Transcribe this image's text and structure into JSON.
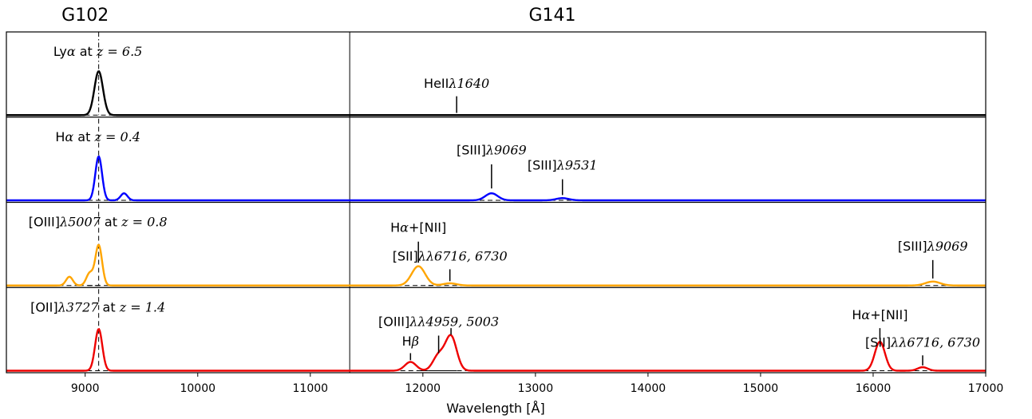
{
  "chart_data": {
    "type": "line",
    "xlabel": "Wavelength [Å]",
    "xlim": [
      8300,
      17000
    ],
    "xticks": [
      9000,
      10000,
      11000,
      12000,
      13000,
      14000,
      15000,
      16000,
      17000
    ],
    "grid": false,
    "legend": "none",
    "grism_divider_x": 11350,
    "grisms": [
      {
        "label": "G102",
        "x_center": 9000
      },
      {
        "label": "G141",
        "x_center": 13150
      }
    ],
    "marker_x": 9120,
    "panels": [
      {
        "color": "#000000",
        "title": [
          "Ly",
          "α",
          " at ",
          "z = 6.5"
        ],
        "lines": [
          {
            "x": 9120,
            "amp": 1.0,
            "sigma": 38
          },
          {
            "x": 12300,
            "amp": 0.0,
            "sigma": 50
          }
        ],
        "annotations": [
          {
            "x": 12300,
            "label": [
              "HeII",
              "λ1640"
            ],
            "tick_from": 0.05,
            "tick_to": 0.43,
            "text_at": 0.62
          }
        ]
      },
      {
        "color": "#0000ff",
        "title": [
          "H",
          "α",
          " at ",
          "z = 0.4"
        ],
        "lines": [
          {
            "x": 9120,
            "amp": 1.0,
            "sigma": 30
          },
          {
            "x": 9345,
            "amp": 0.16,
            "sigma": 30
          },
          {
            "x": 12610,
            "amp": 0.16,
            "sigma": 55
          },
          {
            "x": 13240,
            "amp": 0.05,
            "sigma": 55
          }
        ],
        "annotations": [
          {
            "x": 12610,
            "label": [
              "[SIII]",
              "λ9069"
            ],
            "tick_from": 0.27,
            "tick_to": 0.82,
            "text_at": 1.05
          },
          {
            "x": 13240,
            "label": [
              "[SIII]",
              "λ9531"
            ],
            "tick_from": 0.12,
            "tick_to": 0.48,
            "text_at": 0.7
          }
        ]
      },
      {
        "color": "#ffa500",
        "title": [
          "[OIII]",
          "λ5007",
          " at ",
          "z = 0.8"
        ],
        "lines": [
          {
            "x": 8860,
            "amp": 0.2,
            "sigma": 30
          },
          {
            "x": 9040,
            "amp": 0.28,
            "sigma": 30
          },
          {
            "x": 9120,
            "amp": 0.92,
            "sigma": 30
          },
          {
            "x": 11960,
            "amp": 0.44,
            "sigma": 60
          },
          {
            "x": 12240,
            "amp": 0.05,
            "sigma": 60
          },
          {
            "x": 16530,
            "amp": 0.09,
            "sigma": 65
          }
        ],
        "annotations": [
          {
            "x": 11960,
            "label": [
              "H",
              "α",
              "+[NII]"
            ],
            "tick_from": 0.52,
            "tick_to": 1.0,
            "text_at": 1.22
          },
          {
            "x": 12240,
            "label": [
              "[SII]",
              "λλ6716, 6730"
            ],
            "tick_from": 0.1,
            "tick_to": 0.37,
            "text_at": 0.57
          },
          {
            "x": 16530,
            "label": [
              "[SIII]",
              "λ9069"
            ],
            "tick_from": 0.16,
            "tick_to": 0.58,
            "text_at": 0.8
          }
        ]
      },
      {
        "color": "#ee0000",
        "title": [
          "[OII]",
          "λ3727",
          " at ",
          "z = 1.4"
        ],
        "lines": [
          {
            "x": 9120,
            "amp": 0.95,
            "sigma": 32
          },
          {
            "x": 11890,
            "amp": 0.2,
            "sigma": 50
          },
          {
            "x": 12140,
            "amp": 0.35,
            "sigma": 50
          },
          {
            "x": 12250,
            "amp": 0.78,
            "sigma": 50
          },
          {
            "x": 16060,
            "amp": 0.66,
            "sigma": 45
          },
          {
            "x": 16440,
            "amp": 0.08,
            "sigma": 45
          }
        ],
        "annotations": [
          {
            "x": 11890,
            "label": [
              "H",
              "β"
            ],
            "tick_from": 0.24,
            "tick_to": 0.4,
            "text_at": 0.57
          },
          {
            "x": 12140,
            "label": [
              "[OIII]",
              "λλ4959, 5003"
            ],
            "tick_from": 0.4,
            "tick_to": 0.8,
            "text_at": 1.02
          },
          {
            "x": 12250,
            "label": [],
            "tick_from": 0.82,
            "tick_to": 0.97,
            "text_at": 1.02
          },
          {
            "x": 16060,
            "label": [
              "H",
              "α",
              "+[NII]"
            ],
            "tick_from": 0.72,
            "tick_to": 0.97,
            "text_at": 1.17
          },
          {
            "x": 16440,
            "label": [
              "[SII]",
              "λλ6716, 6730"
            ],
            "tick_from": 0.12,
            "tick_to": 0.35,
            "text_at": 0.55
          }
        ]
      }
    ]
  }
}
